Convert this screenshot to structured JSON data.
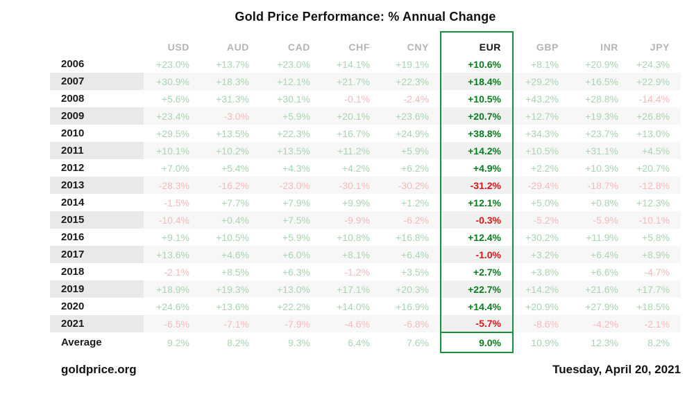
{
  "title": "Gold Price Performance: % Annual Change",
  "footer": {
    "source": "goldprice.org",
    "date": "Tuesday, April 20, 2021"
  },
  "colors": {
    "positive_light": "#a9d5b0",
    "negative_light": "#f8b9b9",
    "positive_strong": "#077d1e",
    "negative_strong": "#e31215",
    "header_gray": "#b4b4b4",
    "highlight_border": "#15913e",
    "text_black": "#1a1a1a",
    "stripe_row": "#f7f7f7",
    "stripe_year": "#e9e9e9"
  },
  "chart_data": {
    "type": "table",
    "title": "Gold Price Performance: % Annual Change",
    "categories": [
      "2006",
      "2007",
      "2008",
      "2009",
      "2010",
      "2011",
      "2012",
      "2013",
      "2014",
      "2015",
      "2016",
      "2017",
      "2018",
      "2019",
      "2020",
      "2021",
      "Average"
    ],
    "highlighted_series": "EUR",
    "value_unit": "%",
    "value_format": "signed percent, one decimal; Average row unsigned",
    "series": [
      {
        "name": "USD",
        "values": [
          23.0,
          30.9,
          5.6,
          23.4,
          29.5,
          10.1,
          7.0,
          -28.3,
          -1.5,
          -10.4,
          9.1,
          13.6,
          -2.1,
          18.9,
          24.6,
          -6.5,
          9.2
        ]
      },
      {
        "name": "AUD",
        "values": [
          13.7,
          18.3,
          31.3,
          -3.0,
          13.5,
          10.2,
          5.4,
          -16.2,
          7.7,
          0.4,
          10.5,
          4.6,
          8.5,
          19.3,
          13.6,
          -7.1,
          8.2
        ]
      },
      {
        "name": "CAD",
        "values": [
          23.0,
          12.1,
          30.1,
          5.9,
          22.3,
          13.5,
          4.3,
          -23.0,
          7.9,
          7.5,
          5.9,
          6.0,
          6.3,
          13.0,
          22.2,
          -7.9,
          9.3
        ]
      },
      {
        "name": "CHF",
        "values": [
          14.1,
          21.7,
          -0.1,
          20.1,
          16.7,
          11.2,
          4.2,
          -30.1,
          9.9,
          -9.9,
          10.8,
          8.1,
          -1.2,
          17.1,
          14.0,
          -4.6,
          6.4
        ]
      },
      {
        "name": "CNY",
        "values": [
          19.1,
          22.3,
          -2.4,
          23.6,
          24.9,
          5.9,
          6.2,
          -30.2,
          1.2,
          -6.2,
          16.8,
          6.4,
          3.5,
          20.3,
          16.9,
          -6.8,
          7.6
        ]
      },
      {
        "name": "EUR",
        "values": [
          10.6,
          18.4,
          10.5,
          20.7,
          38.8,
          14.2,
          4.9,
          -31.2,
          12.1,
          -0.3,
          12.4,
          -1.0,
          2.7,
          22.7,
          14.4,
          -5.7,
          9.0
        ]
      },
      {
        "name": "GBP",
        "values": [
          8.1,
          29.2,
          43.2,
          12.7,
          34.3,
          10.5,
          2.2,
          -29.4,
          5.0,
          -5.2,
          30.2,
          3.2,
          3.8,
          14.2,
          20.9,
          -8.6,
          10.9
        ]
      },
      {
        "name": "INR",
        "values": [
          20.9,
          16.5,
          28.8,
          19.3,
          23.7,
          31.1,
          10.3,
          -18.7,
          0.8,
          -5.9,
          11.9,
          6.4,
          6.6,
          21.6,
          27.9,
          -4.2,
          12.3
        ]
      },
      {
        "name": "JPY",
        "values": [
          24.3,
          22.9,
          -14.4,
          26.8,
          13.0,
          4.5,
          20.7,
          -12.8,
          12.3,
          -10.1,
          5.8,
          8.9,
          -4.7,
          17.7,
          18.5,
          -2.1,
          8.2
        ]
      }
    ]
  }
}
